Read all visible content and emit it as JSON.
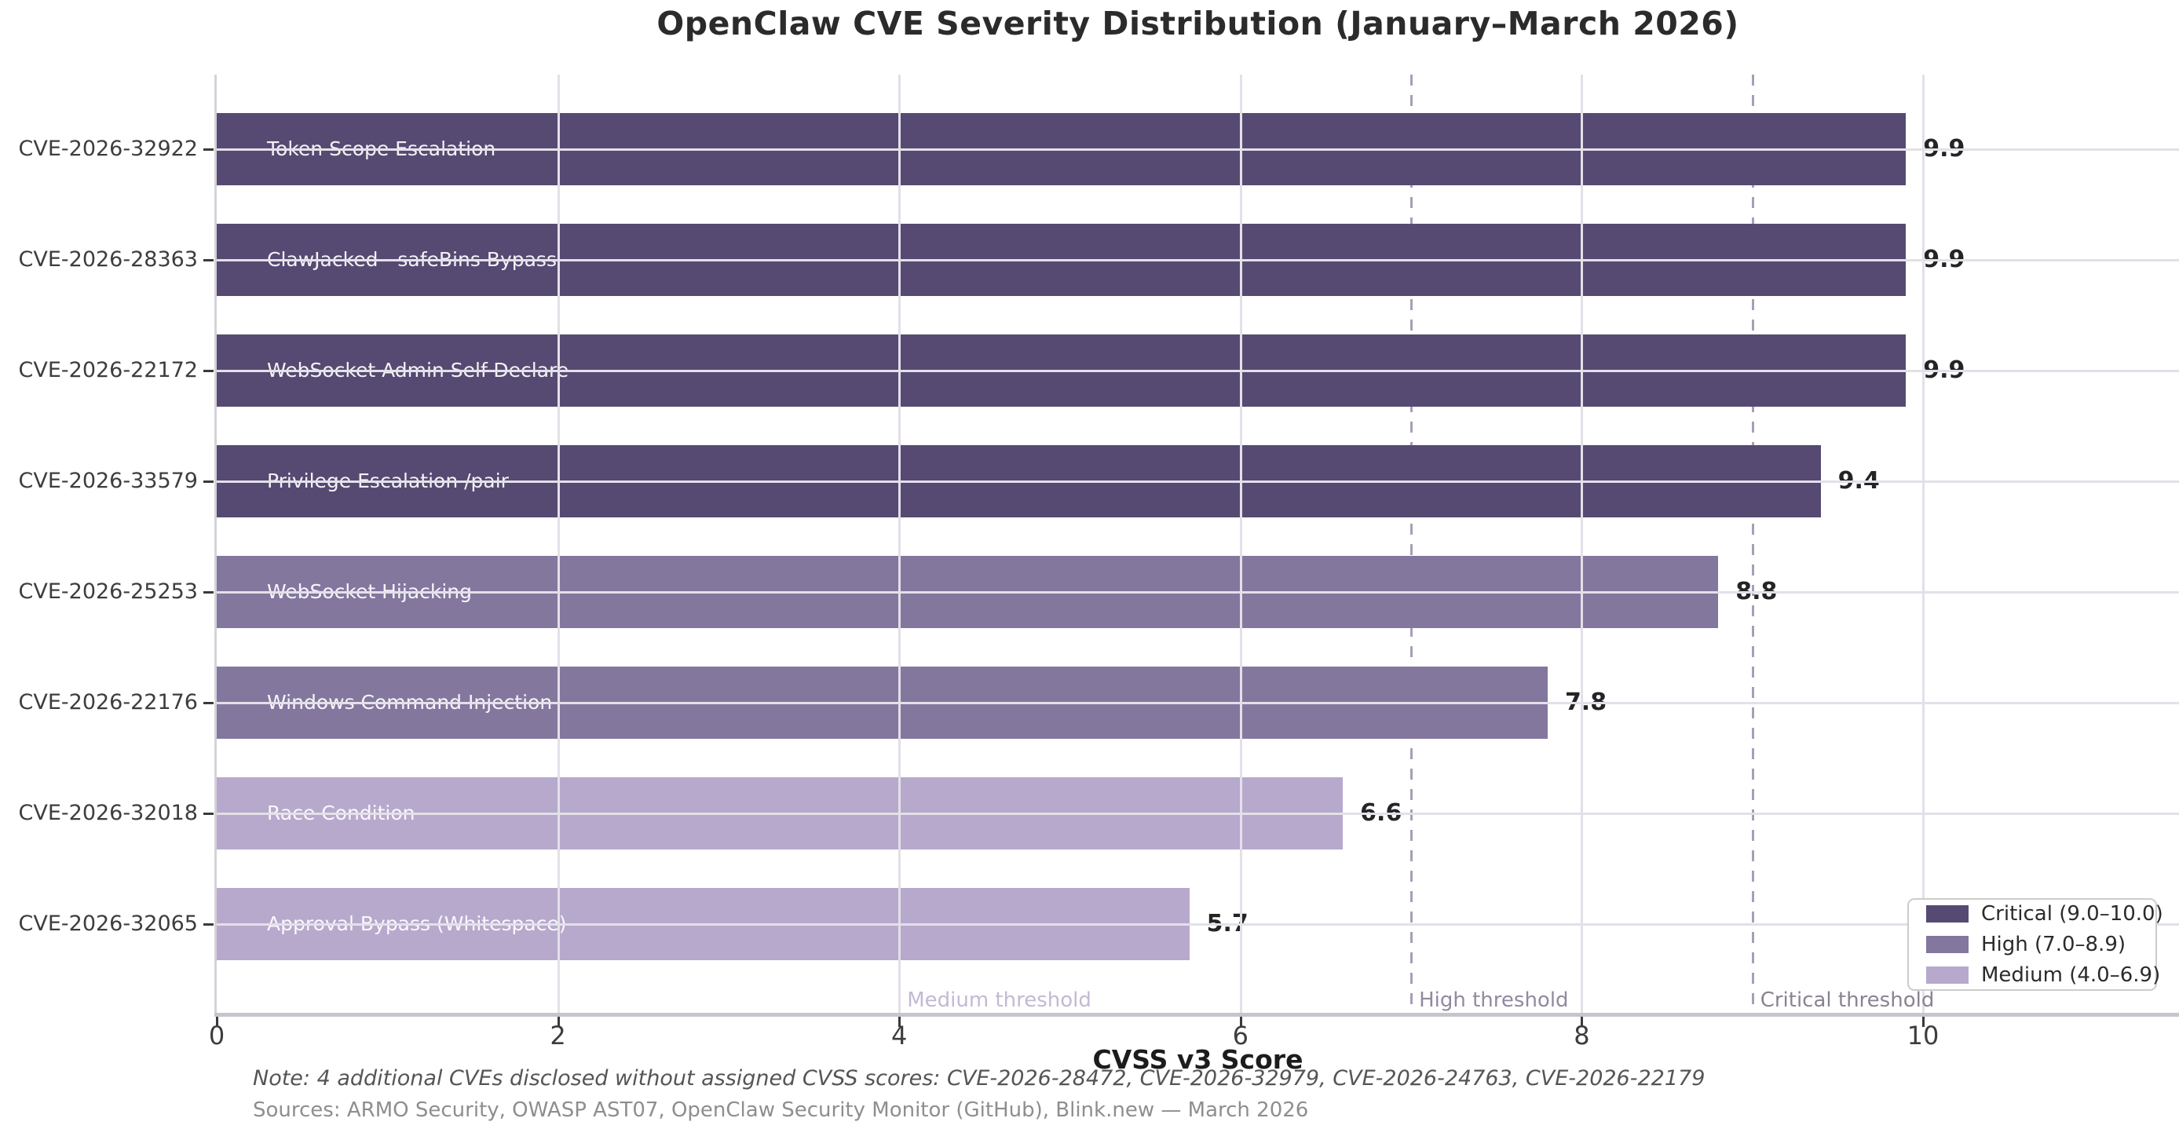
{
  "title": "OpenClaw CVE Severity Distribution (January–March 2026)",
  "footnotes": {
    "note": "Note: 4 additional CVEs disclosed without assigned CVSS scores: CVE-2026-28472, CVE-2026-32979, CVE-2026-24763, CVE-2026-22179",
    "sources": "Sources: ARMO Security, OWASP AST07, OpenClaw Security Monitor (GitHub), Blink.new — March 2026"
  },
  "chart_data": {
    "type": "bar",
    "orientation": "horizontal",
    "title": "OpenClaw CVE Severity Distribution (January–March 2026)",
    "xlabel": "CVSS v3 Score",
    "ylabel": "",
    "xlim": [
      0,
      11.5
    ],
    "x_ticks": [
      0,
      2,
      4,
      6,
      8,
      10
    ],
    "grid": true,
    "bars": [
      {
        "cve": "CVE-2026-32922",
        "label": "Token Scope Escalation",
        "score": 9.9,
        "severity": "critical"
      },
      {
        "cve": "CVE-2026-28363",
        "label": "ClawJacked - safeBins Bypass",
        "score": 9.9,
        "severity": "critical"
      },
      {
        "cve": "CVE-2026-22172",
        "label": "WebSocket Admin Self-Declare",
        "score": 9.9,
        "severity": "critical"
      },
      {
        "cve": "CVE-2026-33579",
        "label": "Privilege Escalation /pair",
        "score": 9.4,
        "severity": "critical"
      },
      {
        "cve": "CVE-2026-25253",
        "label": "WebSocket Hijacking",
        "score": 8.8,
        "severity": "high"
      },
      {
        "cve": "CVE-2026-22176",
        "label": "Windows Command Injection",
        "score": 7.8,
        "severity": "high"
      },
      {
        "cve": "CVE-2026-32018",
        "label": "Race Condition",
        "score": 6.6,
        "severity": "medium"
      },
      {
        "cve": "CVE-2026-32065",
        "label": "Approval Bypass (Whitespace)",
        "score": 5.7,
        "severity": "medium"
      }
    ],
    "severity_colors": {
      "critical": "#564a72",
      "high": "#84779e",
      "medium": "#b7a9cc"
    },
    "grid_color": "#e3e0e9",
    "threshold_line_color": "#a79eb6",
    "thresholds": [
      {
        "value": 4.0,
        "label": "Medium threshold",
        "label_color": "#c4b9d4"
      },
      {
        "value": 7.0,
        "label": "High threshold",
        "label_color": "#93899f"
      },
      {
        "value": 9.0,
        "label": "Critical threshold",
        "label_color": "#8b8292"
      }
    ],
    "legend": {
      "position": "lower right",
      "entries": [
        {
          "label": "Critical (9.0–10.0)",
          "severity": "critical"
        },
        {
          "label": "High (7.0–8.9)",
          "severity": "high"
        },
        {
          "label": "Medium (4.0–6.9)",
          "severity": "medium"
        }
      ]
    }
  }
}
